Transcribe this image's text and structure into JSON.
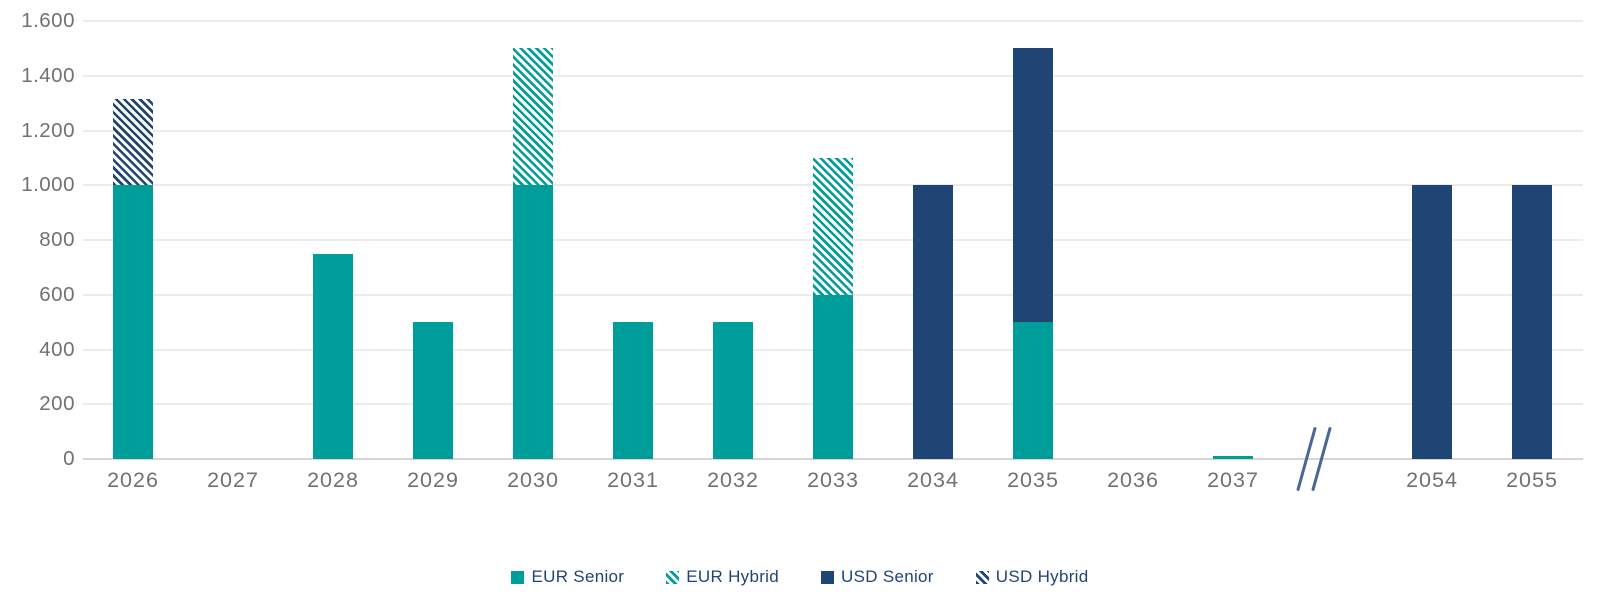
{
  "chart_data": {
    "type": "bar",
    "stacked": true,
    "title": "",
    "xlabel": "",
    "ylabel": "",
    "categories": [
      "2026",
      "2027",
      "2028",
      "2029",
      "2030",
      "2031",
      "2032",
      "2033",
      "2034",
      "2035",
      "2036",
      "2037",
      "2054",
      "2055"
    ],
    "axis_break_between": [
      "2037",
      "2054"
    ],
    "series": [
      {
        "name": "EUR Senior",
        "key": "eur-senior",
        "color": "#009E9B",
        "pattern": "solid",
        "values": [
          1000,
          0,
          750,
          500,
          1000,
          500,
          500,
          600,
          0,
          500,
          0,
          10,
          0,
          0
        ]
      },
      {
        "name": "EUR Hybrid",
        "key": "eur-hybrid",
        "color": "#009E9B",
        "pattern": "hatch",
        "values": [
          0,
          0,
          0,
          0,
          500,
          0,
          0,
          500,
          0,
          0,
          0,
          0,
          0,
          0
        ]
      },
      {
        "name": "USD Senior",
        "key": "usd-senior",
        "color": "#1E4574",
        "pattern": "solid",
        "values": [
          0,
          0,
          0,
          0,
          0,
          0,
          0,
          0,
          1000,
          1000,
          0,
          0,
          1000,
          1000
        ]
      },
      {
        "name": "USD Hybrid",
        "key": "usd-hybrid",
        "color": "#1E4574",
        "pattern": "hatch",
        "values": [
          315,
          0,
          0,
          0,
          0,
          0,
          0,
          0,
          0,
          0,
          0,
          0,
          0,
          0
        ]
      }
    ],
    "ylim": [
      0,
      1600
    ],
    "ytick_values": [
      0,
      200,
      400,
      600,
      800,
      1000,
      1200,
      1400,
      1600
    ],
    "ytick_labels": [
      "0",
      "200",
      "400",
      "600",
      "800",
      "1.000",
      "1.200",
      "1.400",
      "1.600"
    ],
    "grid": "horizontal",
    "legend_position": "bottom-center"
  },
  "legend": {
    "items": [
      {
        "label": "EUR Senior",
        "series": "eur-senior"
      },
      {
        "label": "EUR Hybrid",
        "series": "eur-hybrid"
      },
      {
        "label": "USD Senior",
        "series": "usd-senior"
      },
      {
        "label": "USD Hybrid",
        "series": "usd-hybrid"
      }
    ]
  },
  "colors": {
    "teal": "#009E9B",
    "navy": "#1E4574",
    "axis_text": "#717171",
    "legend_text": "#1F4574",
    "gridline": "#EBEBEB",
    "baseline": "#D6D6D6",
    "break_mark": "#4A6694"
  }
}
